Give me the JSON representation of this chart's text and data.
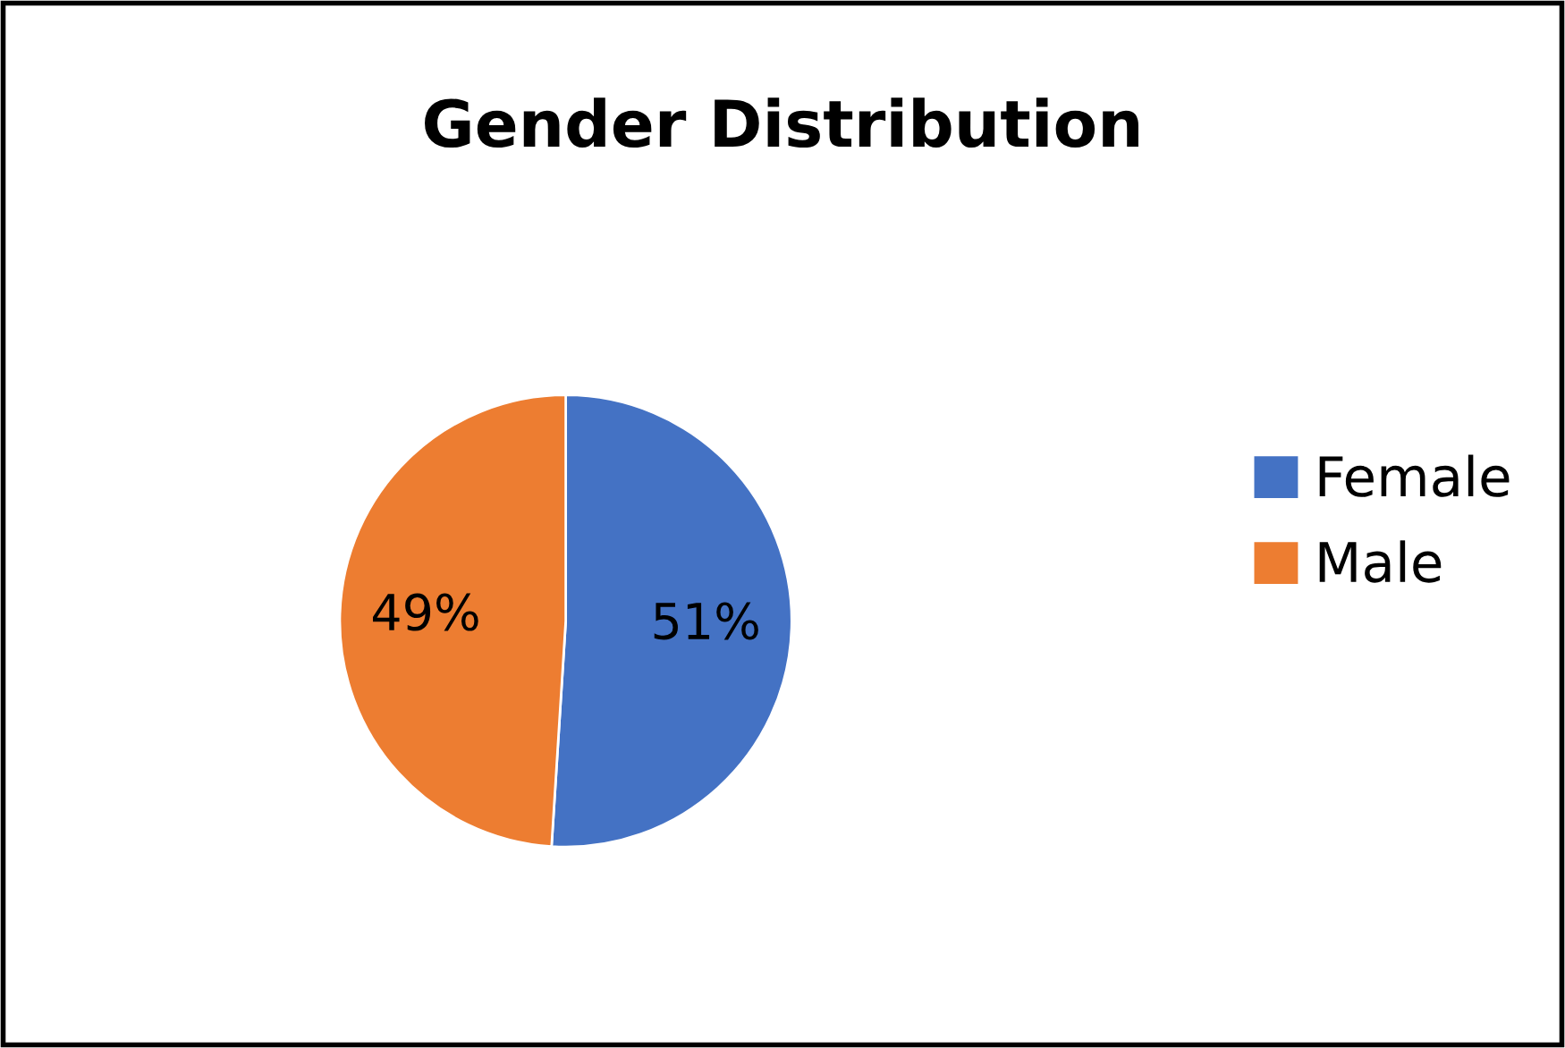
{
  "chart_data": {
    "type": "pie",
    "title": "Gender Distribution",
    "categories": [
      "Female",
      "Male"
    ],
    "values": [
      51,
      49
    ],
    "colors": [
      "#4472c4",
      "#ed7d31"
    ],
    "value_labels": [
      "51%",
      "49%"
    ],
    "legend": "right"
  }
}
